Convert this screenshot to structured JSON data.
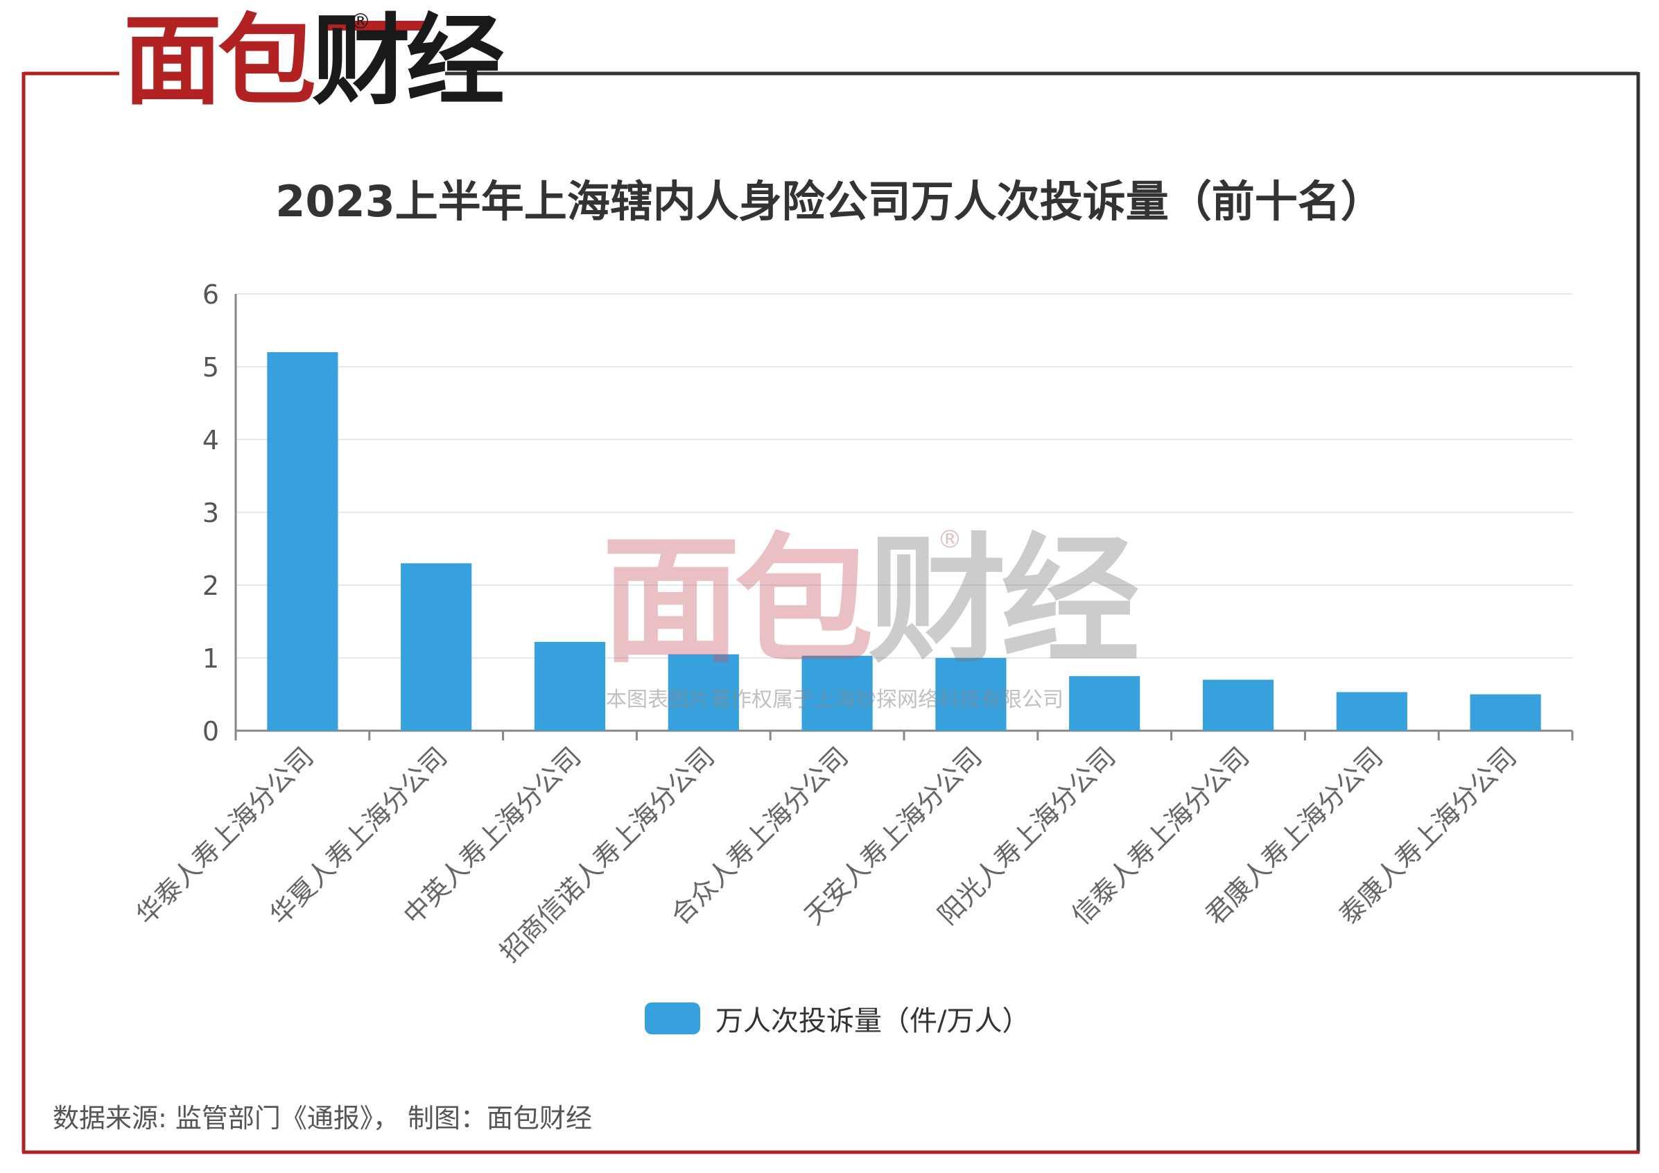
{
  "brand": {
    "logo_text_red": "面包",
    "logo_text_dark": "财经",
    "registered": "®"
  },
  "title": "2023上半年上海辖内人身险公司万人次投诉量（前十名）",
  "legend": {
    "label": "万人次投诉量（件/万人）"
  },
  "watermark": {
    "text_red": "面包",
    "text_gray": "财经",
    "registered": "®",
    "subtext": "本图表图片著作权属于上海妙探网络科技有限公司"
  },
  "footer": "数据来源: 监管部门《通报》， 制图：面包财经",
  "colors": {
    "bar": "#36a1dc",
    "frame_red": "#b22222",
    "frame_dark": "#333333",
    "grid": "#e3e8ef",
    "axis": "#888888"
  },
  "chart_data": {
    "type": "bar",
    "title": "2023上半年上海辖内人身险公司万人次投诉量（前十名）",
    "categories": [
      "华泰人寿上海分公司",
      "华夏人寿上海分公司",
      "中英人寿上海分公司",
      "招商信诺人寿上海分公司",
      "合众人寿上海分公司",
      "天安人寿上海分公司",
      "阳光人寿上海分公司",
      "信泰人寿上海分公司",
      "君康人寿上海分公司",
      "泰康人寿上海分公司"
    ],
    "series": [
      {
        "name": "万人次投诉量（件/万人）",
        "values": [
          5.2,
          2.3,
          1.22,
          1.05,
          1.03,
          1.0,
          0.75,
          0.7,
          0.53,
          0.5
        ]
      }
    ],
    "y_ticks": [
      "0",
      "1",
      "2",
      "3",
      "4",
      "5",
      "6"
    ],
    "ylim": [
      0,
      6
    ],
    "xlabel": "",
    "ylabel": "",
    "grid": true,
    "legend_position": "bottom-center"
  }
}
